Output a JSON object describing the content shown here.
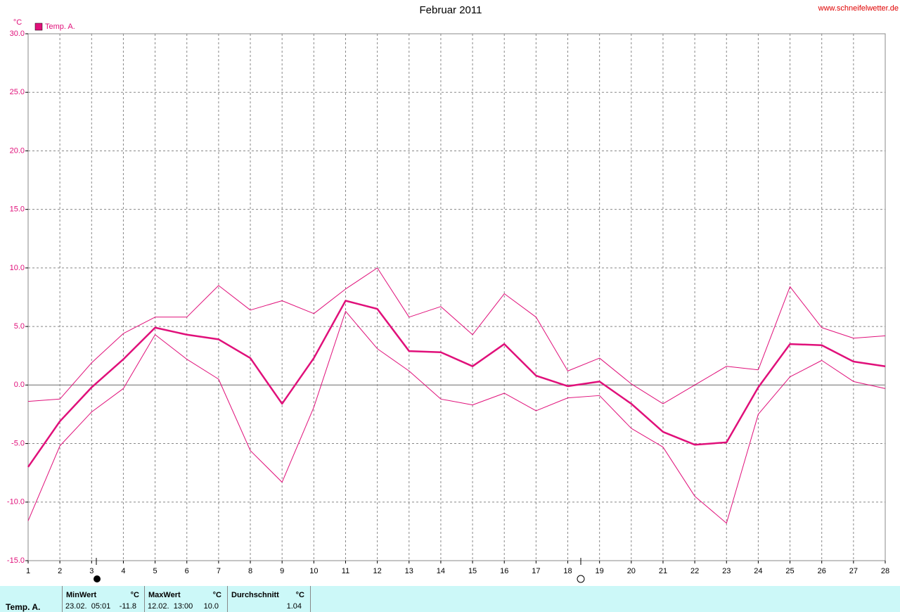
{
  "chart_data": {
    "type": "line",
    "title": "Februar 2011",
    "y_unit": "°C",
    "source": "www.schneifelwetter.de",
    "x": [
      1,
      2,
      3,
      4,
      5,
      6,
      7,
      8,
      9,
      10,
      11,
      12,
      13,
      14,
      15,
      16,
      17,
      18,
      19,
      20,
      21,
      22,
      23,
      24,
      25,
      26,
      27,
      28
    ],
    "xlim": [
      1,
      28
    ],
    "xticks": [
      1,
      2,
      3,
      4,
      5,
      6,
      7,
      8,
      9,
      10,
      11,
      12,
      13,
      14,
      15,
      16,
      17,
      18,
      19,
      20,
      21,
      22,
      23,
      24,
      25,
      26,
      27,
      28
    ],
    "ylim": [
      -15,
      30
    ],
    "yticks": [
      {
        "value": -15,
        "label": "-15.0"
      },
      {
        "value": -10,
        "label": "-10.0"
      },
      {
        "value": -5,
        "label": "-5.0"
      },
      {
        "value": 0,
        "label": "0.0"
      },
      {
        "value": 5,
        "label": "5.0"
      },
      {
        "value": 10,
        "label": "10.0"
      },
      {
        "value": 15,
        "label": "15.0"
      },
      {
        "value": 20,
        "label": "20.0"
      },
      {
        "value": 25,
        "label": "25.0"
      },
      {
        "value": 30,
        "label": "30.0"
      }
    ],
    "grid": true,
    "series": [
      {
        "name": "Temp. A.",
        "color": "#e0107a",
        "width": 2.5,
        "values": [
          -7.0,
          -3.1,
          -0.2,
          2.2,
          4.9,
          4.3,
          3.9,
          2.3,
          -1.6,
          2.3,
          7.2,
          6.5,
          2.9,
          2.8,
          1.6,
          3.5,
          0.8,
          -0.1,
          0.3,
          -1.6,
          -4.0,
          -5.1,
          -4.9,
          -0.2,
          3.5,
          3.4,
          2.0,
          1.6
        ]
      },
      {
        "color": "#e0107a",
        "width": 1,
        "values": [
          -1.4,
          -1.2,
          1.9,
          4.4,
          5.8,
          5.8,
          8.5,
          6.4,
          7.2,
          6.1,
          8.2,
          10.0,
          5.8,
          6.7,
          4.3,
          7.8,
          5.8,
          1.2,
          2.3,
          0.1,
          -1.6,
          0.0,
          1.6,
          1.3,
          8.4,
          4.9,
          4.0,
          4.2
        ]
      },
      {
        "color": "#e0107a",
        "width": 1,
        "values": [
          -11.6,
          -5.2,
          -2.3,
          -0.3,
          4.3,
          2.2,
          0.5,
          -5.6,
          -8.3,
          -1.9,
          6.3,
          3.1,
          1.2,
          -1.2,
          -1.7,
          -0.7,
          -2.2,
          -1.1,
          -0.9,
          -3.7,
          -5.3,
          -9.5,
          -11.8,
          -2.5,
          0.7,
          2.1,
          0.3,
          -0.3
        ]
      }
    ]
  },
  "table": {
    "columns": [
      {
        "title": "MinWert",
        "unit": "°C"
      },
      {
        "title": "MaxWert",
        "unit": "°C"
      },
      {
        "title": "Durchschnitt",
        "unit": "°C"
      }
    ],
    "rows": [
      {
        "label": "Temp. A.",
        "cells": [
          {
            "time": "23.02.  05:01",
            "value": "-11.8"
          },
          {
            "time": "12.02.  13:00",
            "value": "10.0"
          },
          {
            "value": "1.04"
          }
        ]
      }
    ]
  }
}
